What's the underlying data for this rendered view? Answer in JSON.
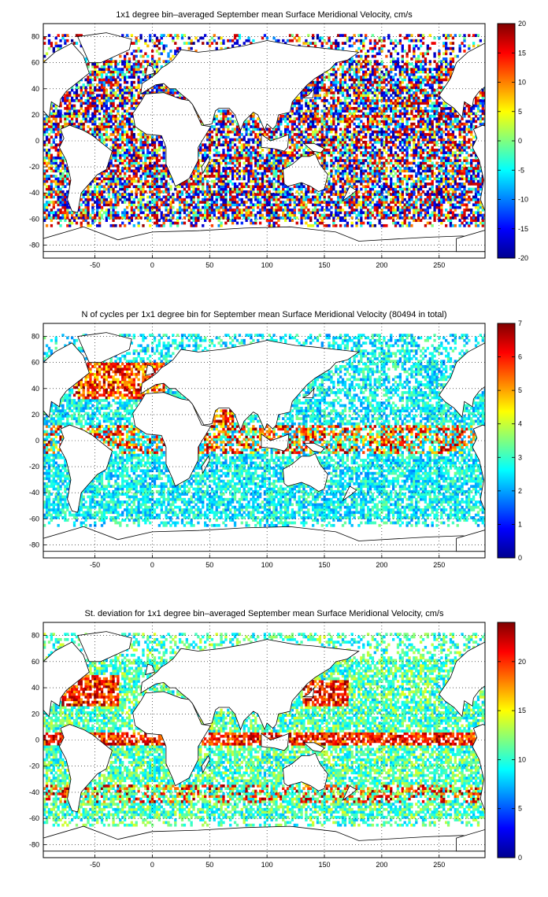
{
  "figure": {
    "panels": [
      {
        "id": "mean",
        "title": "1x1 degree bin–averaged September mean Surface Meridional Velocity, cm/s",
        "colorbar_ticks": [
          "20",
          "15",
          "10",
          "5",
          "0",
          "-5",
          "-10",
          "-15",
          "-20"
        ],
        "x_ticks": [
          "-50",
          "0",
          "50",
          "100",
          "150",
          "200",
          "250"
        ],
        "y_ticks": [
          "80",
          "60",
          "40",
          "20",
          "0",
          "-20",
          "-40",
          "-60",
          "-80"
        ]
      },
      {
        "id": "count",
        "title": "N of cycles per 1x1 degree bin for September mean Surface Meridional Velocity (80494 in total)",
        "colorbar_ticks": [
          "7",
          "6",
          "5",
          "4",
          "3",
          "2",
          "1",
          "0"
        ],
        "x_ticks": [
          "-50",
          "0",
          "50",
          "100",
          "150",
          "200",
          "250"
        ],
        "y_ticks": [
          "80",
          "60",
          "40",
          "20",
          "0",
          "-20",
          "-40",
          "-60",
          "-80"
        ]
      },
      {
        "id": "std",
        "title": "St. deviation for 1x1 degree bin–averaged September mean Surface Meridional Velocity, cm/s",
        "colorbar_ticks": [
          "20",
          "15",
          "10",
          "5",
          "0"
        ],
        "x_ticks": [
          "-50",
          "0",
          "50",
          "100",
          "150",
          "200",
          "250"
        ],
        "y_ticks": [
          "80",
          "60",
          "40",
          "20",
          "0",
          "-20",
          "-40",
          "-60",
          "-80"
        ]
      }
    ]
  },
  "chart_data": [
    {
      "type": "heatmap",
      "title": "1x1 degree bin–averaged September mean Surface Meridional Velocity, cm/s",
      "xlabel": "",
      "ylabel": "",
      "xlim": [
        -95,
        290
      ],
      "ylim": [
        -90,
        90
      ],
      "colorbar": {
        "range": [
          -20,
          20
        ],
        "ticks": [
          20,
          15,
          10,
          5,
          0,
          -5,
          -10,
          -15,
          -20
        ],
        "colormap": "jet"
      },
      "grid": true,
      "legend": "colorbar-right"
    },
    {
      "type": "heatmap",
      "title": "N of cycles per 1x1 degree bin for September mean Surface Meridional Velocity (80494 in total)",
      "xlabel": "",
      "ylabel": "",
      "xlim": [
        -95,
        290
      ],
      "ylim": [
        -90,
        90
      ],
      "colorbar": {
        "range": [
          0,
          7
        ],
        "ticks": [
          7,
          6,
          5,
          4,
          3,
          2,
          1,
          0
        ],
        "colormap": "jet"
      },
      "grid": true,
      "legend": "colorbar-right"
    },
    {
      "type": "heatmap",
      "title": "St. deviation for 1x1 degree bin–averaged September mean Surface Meridional Velocity, cm/s",
      "xlabel": "",
      "ylabel": "",
      "xlim": [
        -95,
        290
      ],
      "ylim": [
        -90,
        90
      ],
      "colorbar": {
        "range": [
          0,
          24
        ],
        "ticks": [
          20,
          15,
          10,
          5,
          0
        ],
        "colormap": "jet"
      },
      "grid": true,
      "legend": "colorbar-right"
    }
  ]
}
